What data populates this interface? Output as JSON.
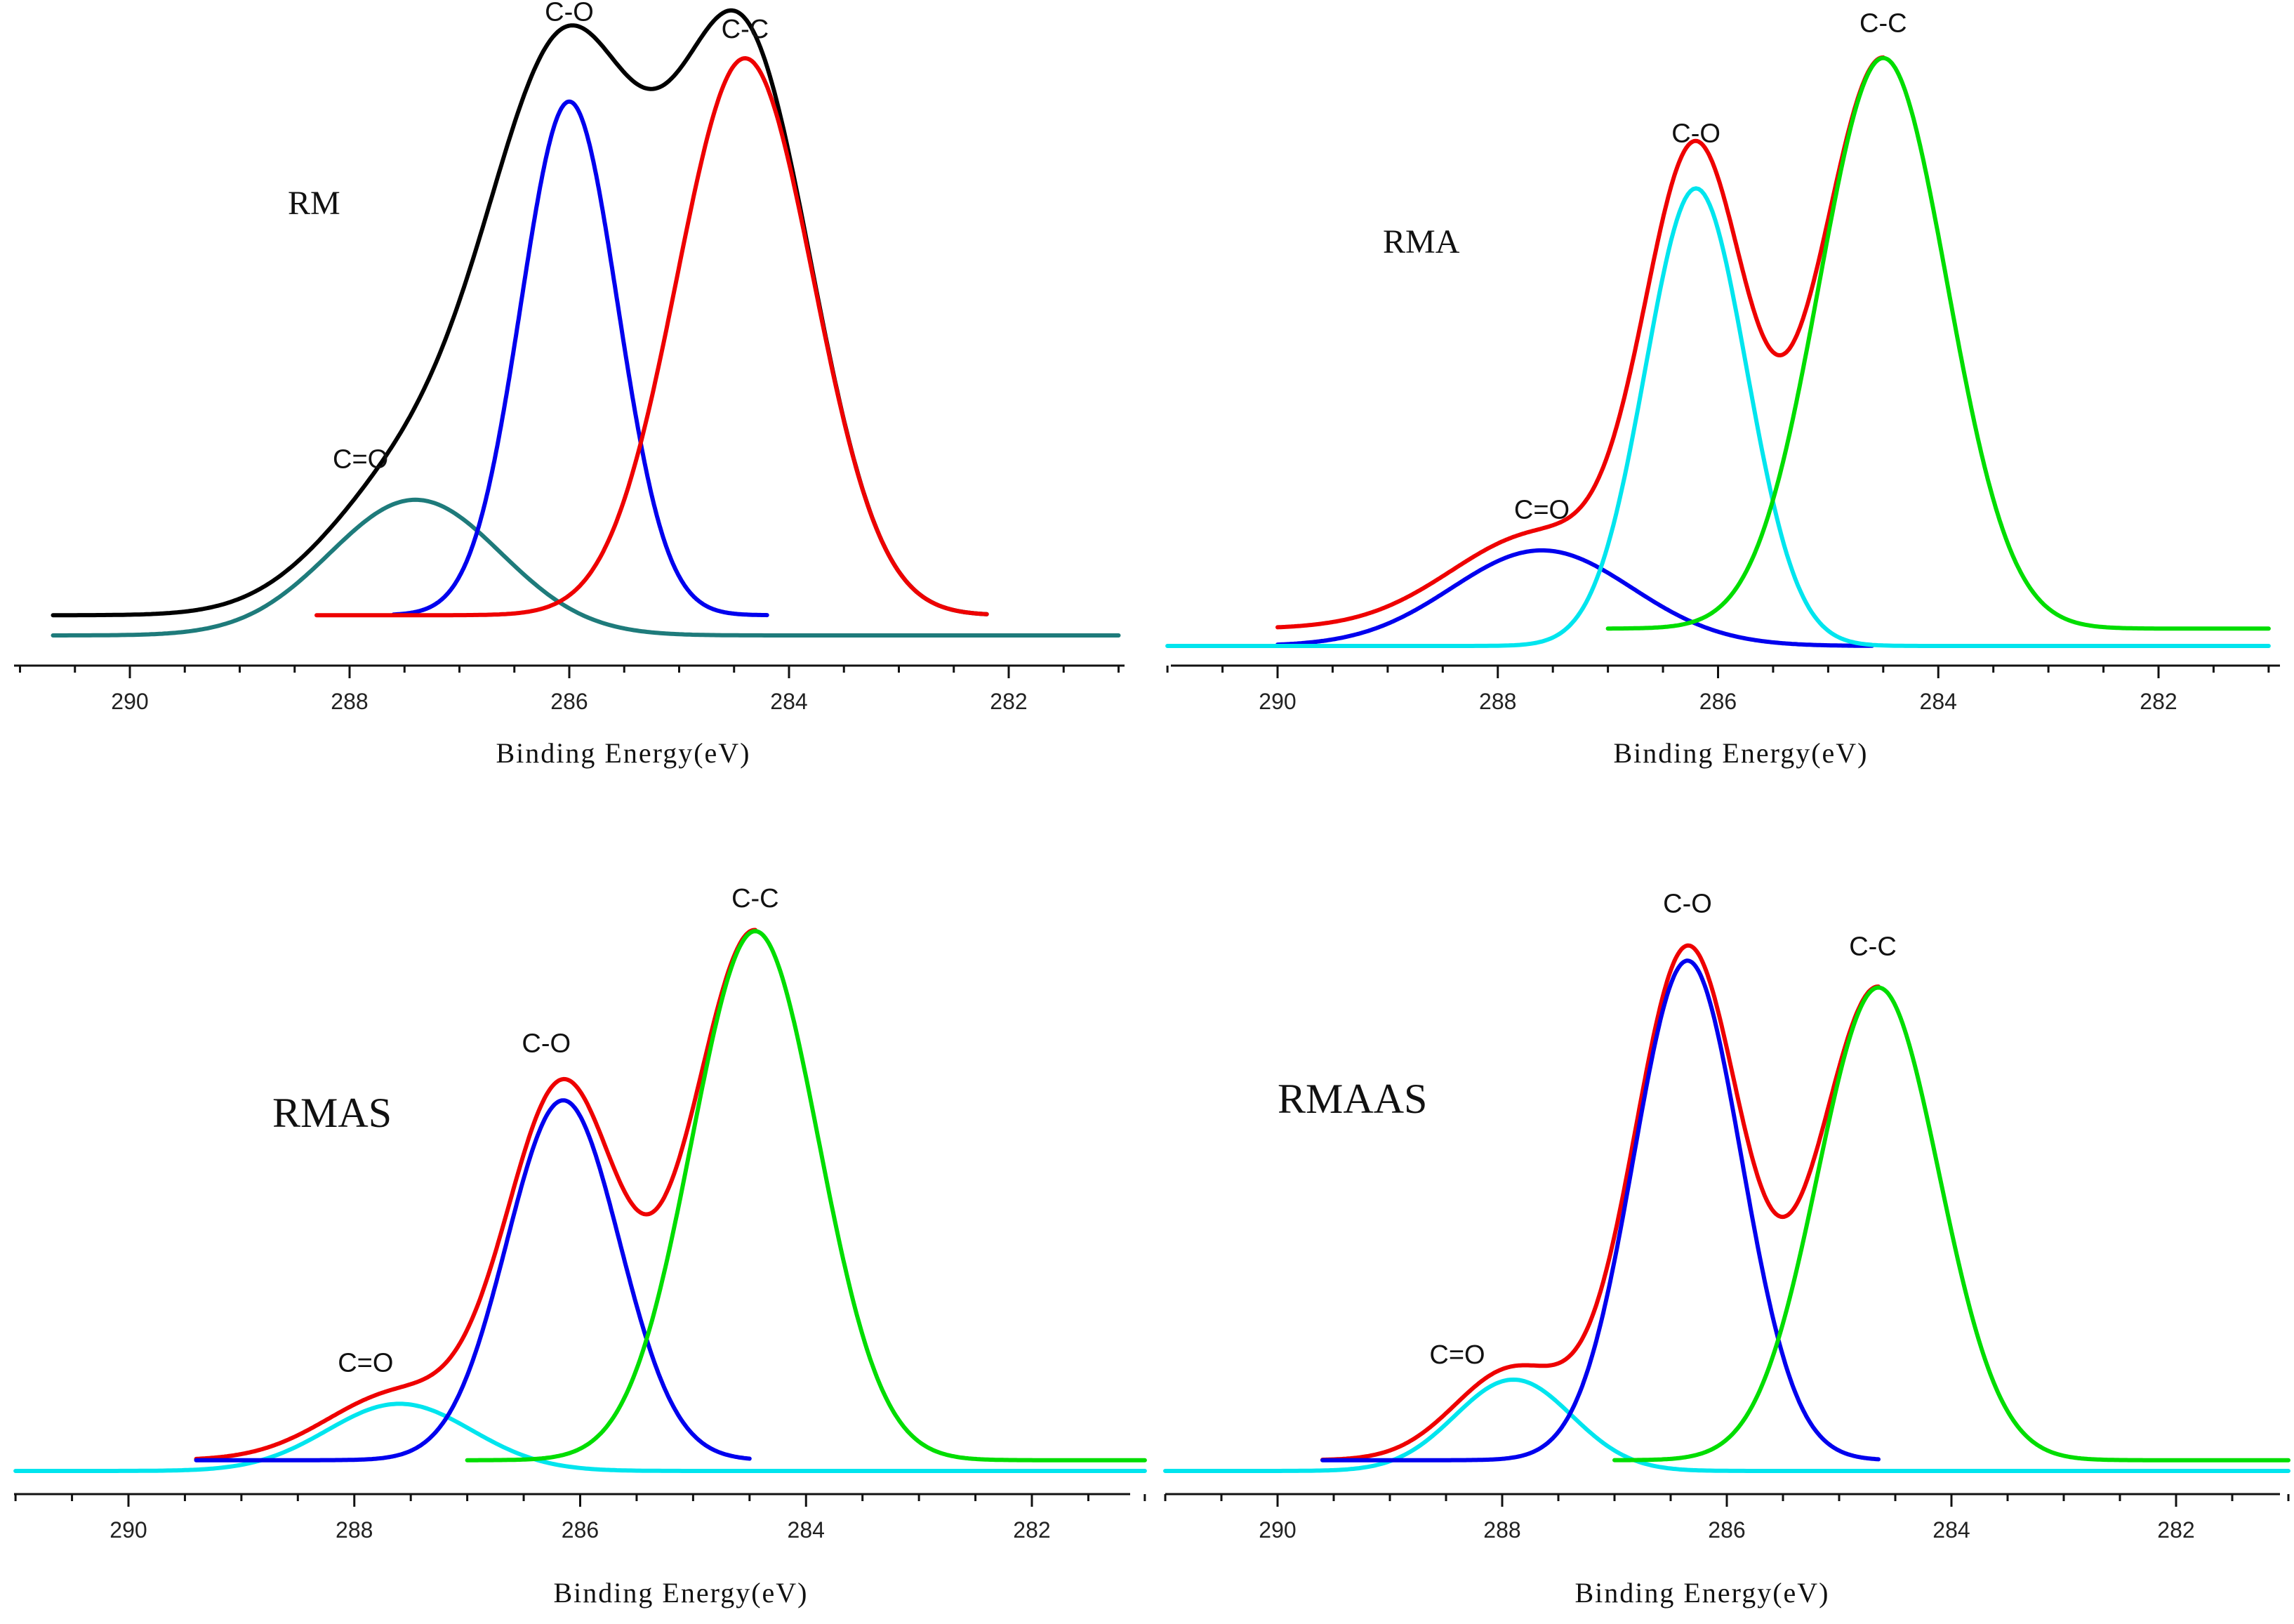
{
  "chart_data": [
    {
      "type": "line",
      "sample": "RM",
      "xlabel": "Binding Energy(eV)",
      "xlim": [
        291,
        281
      ],
      "x_direction": "reversed",
      "x_ticks": [
        290,
        288,
        286,
        284,
        282
      ],
      "x_tick_labels": [
        "290",
        "288",
        "286",
        "284",
        "282"
      ],
      "legend": "none",
      "series": [
        {
          "name": "envelope",
          "color": "#000000",
          "x_range": [
            290.7,
            282.2
          ],
          "baseline": 0.035,
          "components": [
            [
              287.4,
              0.78,
              0.235
            ],
            [
              286.0,
              0.7,
              0.94
            ],
            [
              284.4,
              0.62,
              0.965
            ]
          ]
        },
        {
          "name": "C=O fit",
          "color": "#1e7b7b",
          "x_range": [
            290.7,
            281
          ],
          "baseline": 0.0,
          "components": [
            [
              287.4,
              0.78,
              0.235
            ]
          ]
        },
        {
          "name": "C-O fit",
          "color": "#0000ee",
          "x_range": [
            287.6,
            284.2
          ],
          "baseline": 0.035,
          "components": [
            [
              286.0,
              0.44,
              0.89
            ]
          ]
        },
        {
          "name": "C-C fit",
          "color": "#ee0000",
          "x_range": [
            288.3,
            282.2
          ],
          "baseline": 0.035,
          "components": [
            [
              284.4,
              0.62,
              0.965
            ]
          ]
        }
      ],
      "peak_labels": [
        {
          "text": "C-O",
          "x": 286.0,
          "y": 1.065
        },
        {
          "text": "C-C",
          "x": 284.4,
          "y": 1.035
        },
        {
          "text": "C=O",
          "x": 287.9,
          "y": 0.29
        }
      ]
    },
    {
      "type": "line",
      "sample": "RMA",
      "xlabel": "Binding Energy(eV)",
      "xlim": [
        291,
        281
      ],
      "x_direction": "reversed",
      "x_ticks": [
        290,
        288,
        286,
        284,
        282
      ],
      "x_tick_labels": [
        "290",
        "288",
        "286",
        "284",
        "282"
      ],
      "legend": "none",
      "series": [
        {
          "name": "envelope",
          "color": "#ee0000",
          "x_range": [
            290.0,
            284.5
          ],
          "baseline": 0.03,
          "components": [
            [
              287.6,
              0.82,
              0.165
            ],
            [
              286.2,
              0.46,
              0.79
            ],
            [
              284.5,
              0.58,
              0.985
            ]
          ]
        },
        {
          "name": "C=O fit",
          "color": "#0000ee",
          "x_range": [
            290.0,
            284.6
          ],
          "baseline": 0.0,
          "components": [
            [
              287.6,
              0.82,
              0.165
            ]
          ]
        },
        {
          "name": "C-O fit",
          "color": "#00e5ee",
          "x_range": [
            291,
            281
          ],
          "baseline": 0.0,
          "components": [
            [
              286.2,
              0.46,
              0.79
            ]
          ]
        },
        {
          "name": "C-C fit",
          "color": "#00dd00",
          "x_range": [
            287.0,
            281
          ],
          "baseline": 0.03,
          "components": [
            [
              284.5,
              0.58,
              0.985
            ]
          ]
        }
      ],
      "peak_labels": [
        {
          "text": "C-O",
          "x": 286.2,
          "y": 0.87
        },
        {
          "text": "C-C",
          "x": 284.5,
          "y": 1.06
        },
        {
          "text": "C=O",
          "x": 287.6,
          "y": 0.22
        }
      ]
    },
    {
      "type": "line",
      "sample": "RMAS",
      "xlabel": "Binding Energy(eV)",
      "xlim": [
        291,
        281
      ],
      "x_direction": "reversed",
      "x_ticks": [
        290,
        288,
        286,
        284,
        282
      ],
      "x_tick_labels": [
        "290",
        "288",
        "286",
        "284",
        "282"
      ],
      "legend": "none",
      "series": [
        {
          "name": "envelope",
          "color": "#ee0000",
          "x_range": [
            289.4,
            284.45
          ],
          "baseline": 0.02,
          "components": [
            [
              287.6,
              0.64,
              0.125
            ],
            [
              286.15,
              0.5,
              0.69
            ],
            [
              284.45,
              0.56,
              0.985
            ]
          ]
        },
        {
          "name": "C=O fit",
          "color": "#00e5ee",
          "x_range": [
            291,
            281
          ],
          "baseline": 0.0,
          "components": [
            [
              287.6,
              0.64,
              0.125
            ]
          ]
        },
        {
          "name": "C-O fit",
          "color": "#0000ee",
          "x_range": [
            289.4,
            284.5
          ],
          "baseline": 0.02,
          "components": [
            [
              286.15,
              0.5,
              0.67
            ]
          ]
        },
        {
          "name": "C-C fit",
          "color": "#00dd00",
          "x_range": [
            287.0,
            281
          ],
          "baseline": 0.02,
          "components": [
            [
              284.45,
              0.56,
              0.985
            ]
          ]
        }
      ],
      "peak_labels": [
        {
          "text": "C-O",
          "x": 286.3,
          "y": 0.78
        },
        {
          "text": "C-C",
          "x": 284.45,
          "y": 1.05
        },
        {
          "text": "C=O",
          "x": 287.9,
          "y": 0.185
        }
      ]
    },
    {
      "type": "line",
      "sample": "RMAAS",
      "xlabel": "Binding Energy(eV)",
      "xlim": [
        291,
        281
      ],
      "x_direction": "reversed",
      "x_ticks": [
        290,
        288,
        286,
        284,
        282
      ],
      "x_tick_labels": [
        "290",
        "288",
        "286",
        "284",
        "282"
      ],
      "legend": "none",
      "series": [
        {
          "name": "envelope",
          "color": "#ee0000",
          "x_range": [
            289.6,
            284.65
          ],
          "baseline": 0.02,
          "components": [
            [
              287.9,
              0.52,
              0.17
            ],
            [
              286.35,
              0.48,
              0.95
            ],
            [
              284.65,
              0.54,
              0.88
            ]
          ]
        },
        {
          "name": "C=O fit",
          "color": "#00e5ee",
          "x_range": [
            291,
            281
          ],
          "baseline": 0.0,
          "components": [
            [
              287.9,
              0.52,
              0.17
            ]
          ]
        },
        {
          "name": "C-O fit",
          "color": "#0000ee",
          "x_range": [
            289.6,
            284.65
          ],
          "baseline": 0.02,
          "components": [
            [
              286.35,
              0.48,
              0.93
            ]
          ]
        },
        {
          "name": "C-C fit",
          "color": "#00dd00",
          "x_range": [
            287.0,
            281
          ],
          "baseline": 0.02,
          "components": [
            [
              284.65,
              0.54,
              0.88
            ]
          ]
        }
      ],
      "peak_labels": [
        {
          "text": "C-O",
          "x": 286.35,
          "y": 1.04
        },
        {
          "text": "C-C",
          "x": 284.7,
          "y": 0.96
        },
        {
          "text": "C=O",
          "x": 288.4,
          "y": 0.2
        }
      ]
    }
  ]
}
